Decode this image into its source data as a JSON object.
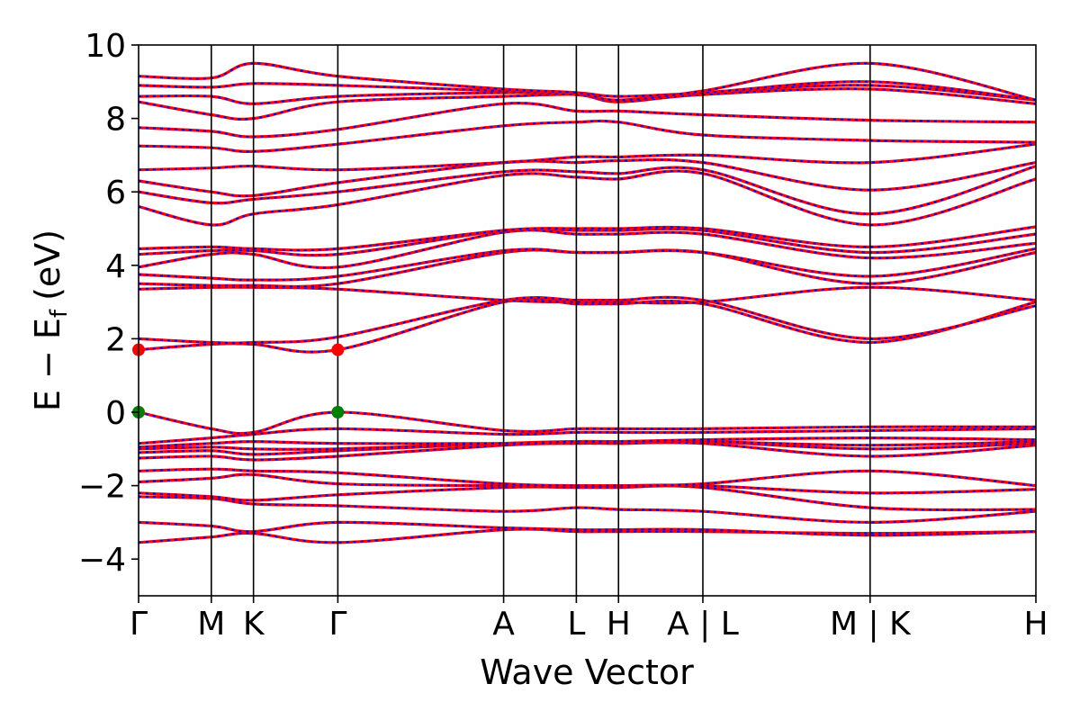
{
  "chart_data": {
    "type": "line",
    "title": "",
    "xlabel": "Wave Vector",
    "ylabel": "E − E",
    "ylabel_subscript": "f",
    "ylabel_unit": "(eV)",
    "ylim": [
      -5,
      10
    ],
    "yticks": [
      -4,
      -2,
      0,
      2,
      4,
      6,
      8,
      10
    ],
    "ytick_labels": [
      "−4",
      "−2",
      "0",
      "2",
      "4",
      "6",
      "8",
      "10"
    ],
    "k_points": [
      {
        "label": "Γ",
        "k": 0.0
      },
      {
        "label": "M",
        "k": 0.5
      },
      {
        "label": "K",
        "k": 0.79
      },
      {
        "label": "Γ",
        "k": 1.37
      },
      {
        "label": "A",
        "k": 2.51
      },
      {
        "label": "L",
        "k": 3.01
      },
      {
        "label": "H",
        "k": 3.3
      },
      {
        "label": "A | L",
        "k": 3.88
      },
      {
        "label": "M | K",
        "k": 5.03
      },
      {
        "label": "H",
        "k": 6.17
      }
    ],
    "colors": {
      "band_a": "#ff0000",
      "band_b": "#0000ff",
      "vbm": "#008000",
      "cbm": "#ff0000",
      "kline": "#000000"
    },
    "bands": [
      {
        "name": "",
        "values": [
          -3.55,
          -3.4,
          -3.3,
          -3.55,
          -3.2,
          -3.25,
          -3.25,
          -3.25,
          -3.3,
          -3.25
        ]
      },
      {
        "name": "",
        "values": [
          -3.0,
          -3.1,
          -3.25,
          -3.0,
          -3.15,
          -3.2,
          -3.2,
          -3.2,
          -3.35,
          -3.25
        ]
      },
      {
        "name": "",
        "values": [
          -2.3,
          -2.35,
          -2.5,
          -2.55,
          -2.7,
          -2.6,
          -2.65,
          -2.7,
          -3.0,
          -2.7
        ]
      },
      {
        "name": "",
        "values": [
          -2.2,
          -2.3,
          -2.4,
          -2.25,
          -2.05,
          -2.05,
          -2.05,
          -2.05,
          -2.6,
          -2.65
        ]
      },
      {
        "name": "",
        "values": [
          -1.9,
          -1.8,
          -1.7,
          -1.95,
          -2.0,
          -2.0,
          -2.0,
          -2.0,
          -2.2,
          -2.1
        ]
      },
      {
        "name": "",
        "values": [
          -1.6,
          -1.55,
          -1.6,
          -1.65,
          -1.95,
          -2.0,
          -2.0,
          -1.95,
          -1.6,
          -2.0
        ]
      },
      {
        "name": "",
        "values": [
          -1.25,
          -1.2,
          -1.3,
          -1.2,
          -0.9,
          -0.85,
          -0.85,
          -0.85,
          -1.2,
          -0.9
        ]
      },
      {
        "name": "",
        "values": [
          -1.1,
          -1.05,
          -1.15,
          -1.05,
          -0.85,
          -0.8,
          -0.85,
          -0.8,
          -1.0,
          -0.85
        ]
      },
      {
        "name": "",
        "values": [
          -1.0,
          -0.95,
          -1.0,
          -1.0,
          -0.85,
          -0.8,
          -0.8,
          -0.8,
          -0.9,
          -0.8
        ]
      },
      {
        "name": "",
        "values": [
          -0.95,
          -0.85,
          -0.8,
          -0.85,
          -0.85,
          -0.8,
          -0.8,
          -0.75,
          -0.7,
          -0.75
        ]
      },
      {
        "name": "",
        "values": [
          -0.85,
          -0.7,
          -0.6,
          -0.45,
          -0.6,
          -0.55,
          -0.55,
          -0.55,
          -0.5,
          -0.45
        ]
      },
      {
        "name": "",
        "values": [
          0.0,
          -0.45,
          -0.55,
          0.0,
          -0.5,
          -0.45,
          -0.45,
          -0.45,
          -0.4,
          -0.4
        ]
      },
      {
        "name": "",
        "values": [
          1.7,
          1.85,
          1.85,
          1.7,
          3.0,
          2.95,
          2.95,
          2.95,
          1.9,
          3.0
        ]
      },
      {
        "name": "",
        "values": [
          2.0,
          1.9,
          1.9,
          2.05,
          3.05,
          3.05,
          3.05,
          3.05,
          2.0,
          2.9
        ]
      },
      {
        "name": "",
        "values": [
          3.35,
          3.4,
          3.4,
          3.35,
          3.05,
          3.0,
          3.0,
          3.0,
          3.4,
          3.05
        ]
      },
      {
        "name": "",
        "values": [
          3.5,
          3.45,
          3.45,
          3.5,
          4.35,
          4.35,
          4.35,
          4.35,
          3.5,
          4.35
        ]
      },
      {
        "name": "",
        "values": [
          3.75,
          3.65,
          3.6,
          3.7,
          4.4,
          4.35,
          4.35,
          4.35,
          3.7,
          4.45
        ]
      },
      {
        "name": "",
        "values": [
          3.95,
          4.3,
          4.3,
          3.95,
          4.9,
          4.85,
          4.85,
          4.85,
          4.2,
          4.6
        ]
      },
      {
        "name": "",
        "values": [
          4.3,
          4.4,
          4.4,
          4.3,
          4.95,
          4.95,
          4.95,
          4.95,
          4.35,
          4.85
        ]
      },
      {
        "name": "",
        "values": [
          4.45,
          4.5,
          4.45,
          4.45,
          4.95,
          5.0,
          5.0,
          5.0,
          4.5,
          5.05
        ]
      },
      {
        "name": "",
        "values": [
          5.6,
          5.1,
          5.4,
          5.65,
          6.45,
          6.4,
          6.35,
          6.5,
          5.1,
          6.35
        ]
      },
      {
        "name": "",
        "values": [
          6.0,
          5.7,
          5.8,
          6.0,
          6.55,
          6.55,
          6.5,
          6.6,
          5.4,
          6.7
        ]
      },
      {
        "name": "",
        "values": [
          6.3,
          6.0,
          5.9,
          6.25,
          6.8,
          6.8,
          6.85,
          6.8,
          6.05,
          6.8
        ]
      },
      {
        "name": "",
        "values": [
          6.6,
          6.65,
          6.7,
          6.6,
          6.8,
          6.95,
          6.95,
          7.0,
          6.8,
          7.3
        ]
      },
      {
        "name": "",
        "values": [
          7.25,
          7.2,
          7.1,
          7.3,
          7.8,
          7.9,
          7.9,
          7.55,
          7.4,
          7.35
        ]
      },
      {
        "name": "",
        "values": [
          7.75,
          7.65,
          7.5,
          7.7,
          8.4,
          8.2,
          8.2,
          8.1,
          7.95,
          7.9
        ]
      },
      {
        "name": "",
        "values": [
          8.45,
          8.1,
          8.0,
          8.45,
          8.6,
          8.65,
          8.45,
          8.65,
          8.8,
          8.4
        ]
      },
      {
        "name": "",
        "values": [
          8.6,
          8.6,
          8.4,
          8.6,
          8.7,
          8.65,
          8.5,
          8.7,
          8.9,
          8.5
        ]
      },
      {
        "name": "",
        "values": [
          8.9,
          8.85,
          8.95,
          8.9,
          8.75,
          8.7,
          8.6,
          8.7,
          9.0,
          8.5
        ]
      },
      {
        "name": "",
        "values": [
          9.15,
          9.1,
          9.5,
          9.15,
          8.8,
          8.7,
          8.5,
          8.75,
          9.5,
          8.5
        ]
      }
    ],
    "vbm_points": [
      {
        "k": 0.0,
        "e": 0.0
      },
      {
        "k": 1.37,
        "e": 0.0
      }
    ],
    "cbm_points": [
      {
        "k": 0.0,
        "e": 1.7
      },
      {
        "k": 1.37,
        "e": 1.7
      }
    ]
  }
}
